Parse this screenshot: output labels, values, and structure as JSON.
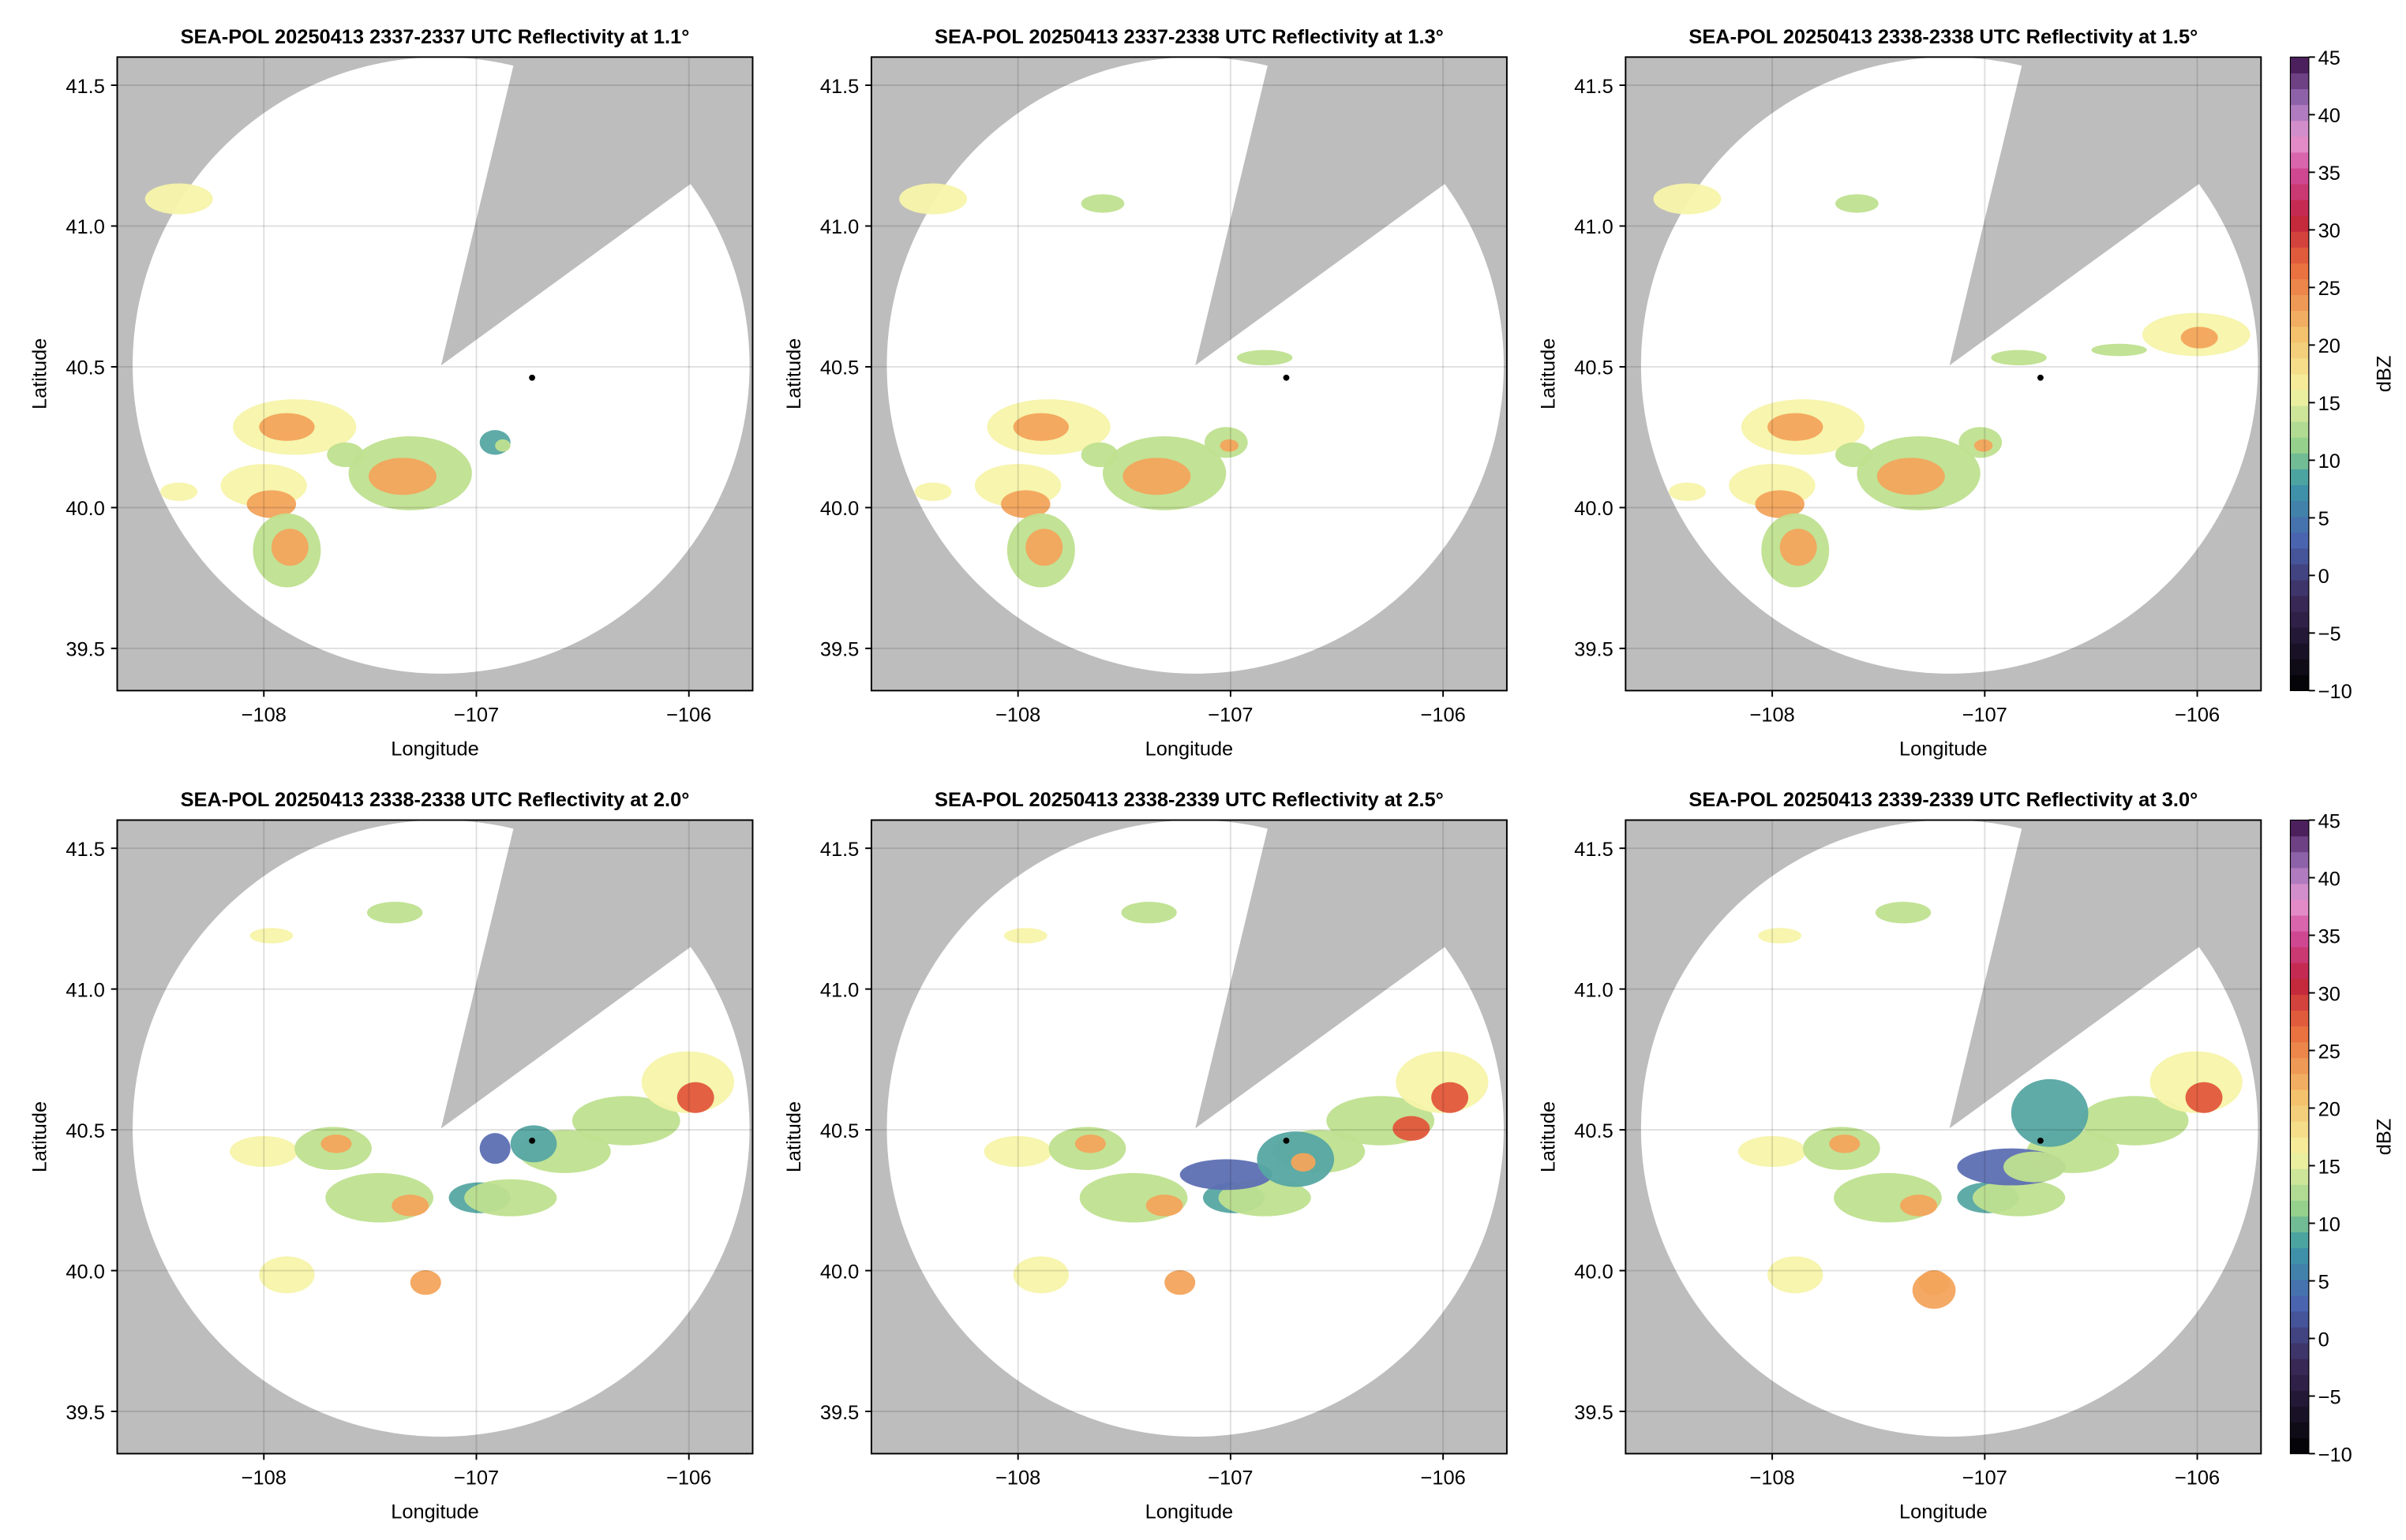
{
  "chart_data": [
    {
      "type": "radar",
      "title": "SEA-POL 20250413 2337-2337 UTC Reflectivity at 1.1°",
      "xlabel": "Longitude",
      "ylabel": "Latitude",
      "xlim": [
        -108.69,
        -105.7
      ],
      "ylim": [
        39.35,
        41.6
      ],
      "xticks": [
        {
          "value": -108,
          "label": "−108"
        },
        {
          "value": -107,
          "label": "−107"
        },
        {
          "value": -106,
          "label": "−106"
        }
      ],
      "yticks": [
        39.5,
        {
          "value": 40,
          "label": "40.0"
        },
        40.5,
        {
          "value": 41,
          "label": "41.0"
        },
        41.5
      ],
      "grid": true
    },
    {
      "type": "radar",
      "title": "SEA-POL 20250413 2337-2338 UTC Reflectivity at 1.3°",
      "xlabel": "Longitude",
      "ylabel": "Latitude",
      "xlim": [
        -108.69,
        -105.7
      ],
      "ylim": [
        39.35,
        41.6
      ],
      "xticks": [
        {
          "value": -108,
          "label": "−108"
        },
        {
          "value": -107,
          "label": "−107"
        },
        {
          "value": -106,
          "label": "−106"
        }
      ],
      "yticks": [
        39.5,
        {
          "value": 40,
          "label": "40.0"
        },
        40.5,
        {
          "value": 41,
          "label": "41.0"
        },
        41.5
      ],
      "grid": true
    },
    {
      "type": "radar",
      "title": "SEA-POL 20250413 2338-2338 UTC Reflectivity at 1.5°",
      "xlabel": "Longitude",
      "ylabel": "Latitude",
      "xlim": [
        -108.69,
        -105.7
      ],
      "ylim": [
        39.35,
        41.6
      ],
      "xticks": [
        {
          "value": -108,
          "label": "−108"
        },
        {
          "value": -107,
          "label": "−107"
        },
        {
          "value": -106,
          "label": "−106"
        }
      ],
      "yticks": [
        39.5,
        {
          "value": 40,
          "label": "40.0"
        },
        40.5,
        {
          "value": 41,
          "label": "41.0"
        },
        41.5
      ],
      "grid": true,
      "colorbar": {
        "label": "dBZ",
        "lim": [
          -10,
          45
        ],
        "ticks": [
          {
            "value": -10,
            "label": "−10"
          },
          {
            "value": -5,
            "label": "−5"
          },
          0,
          5,
          10,
          15,
          20,
          25,
          30,
          35,
          40,
          45
        ]
      }
    },
    {
      "type": "radar",
      "title": "SEA-POL 20250413 2338-2338 UTC Reflectivity at 2.0°",
      "xlabel": "Longitude",
      "ylabel": "Latitude",
      "xlim": [
        -108.69,
        -105.7
      ],
      "ylim": [
        39.35,
        41.6
      ],
      "xticks": [
        {
          "value": -108,
          "label": "−108"
        },
        {
          "value": -107,
          "label": "−107"
        },
        {
          "value": -106,
          "label": "−106"
        }
      ],
      "yticks": [
        39.5,
        {
          "value": 40,
          "label": "40.0"
        },
        40.5,
        {
          "value": 41,
          "label": "41.0"
        },
        41.5
      ],
      "grid": true
    },
    {
      "type": "radar",
      "title": "SEA-POL 20250413 2338-2339 UTC Reflectivity at 2.5°",
      "xlabel": "Longitude",
      "ylabel": "Latitude",
      "xlim": [
        -108.69,
        -105.7
      ],
      "ylim": [
        39.35,
        41.6
      ],
      "xticks": [
        {
          "value": -108,
          "label": "−108"
        },
        {
          "value": -107,
          "label": "−107"
        },
        {
          "value": -106,
          "label": "−106"
        }
      ],
      "yticks": [
        39.5,
        {
          "value": 40,
          "label": "40.0"
        },
        40.5,
        {
          "value": 41,
          "label": "41.0"
        },
        41.5
      ],
      "grid": true
    },
    {
      "type": "radar",
      "title": "SEA-POL 20250413 2339-2339 UTC Reflectivity at 3.0°",
      "xlabel": "Longitude",
      "ylabel": "Latitude",
      "xlim": [
        -108.69,
        -105.7
      ],
      "ylim": [
        39.35,
        41.6
      ],
      "xticks": [
        {
          "value": -108,
          "label": "−108"
        },
        {
          "value": -107,
          "label": "−107"
        },
        {
          "value": -106,
          "label": "−106"
        }
      ],
      "yticks": [
        39.5,
        {
          "value": 40,
          "label": "40.0"
        },
        40.5,
        {
          "value": 41,
          "label": "41.0"
        },
        41.5
      ],
      "grid": true,
      "colorbar": {
        "label": "dBZ",
        "lim": [
          -10,
          45
        ],
        "ticks": [
          {
            "value": -10,
            "label": "−10"
          },
          {
            "value": -5,
            "label": "−5"
          },
          0,
          5,
          10,
          15,
          20,
          25,
          30,
          35,
          40,
          45
        ]
      }
    }
  ]
}
